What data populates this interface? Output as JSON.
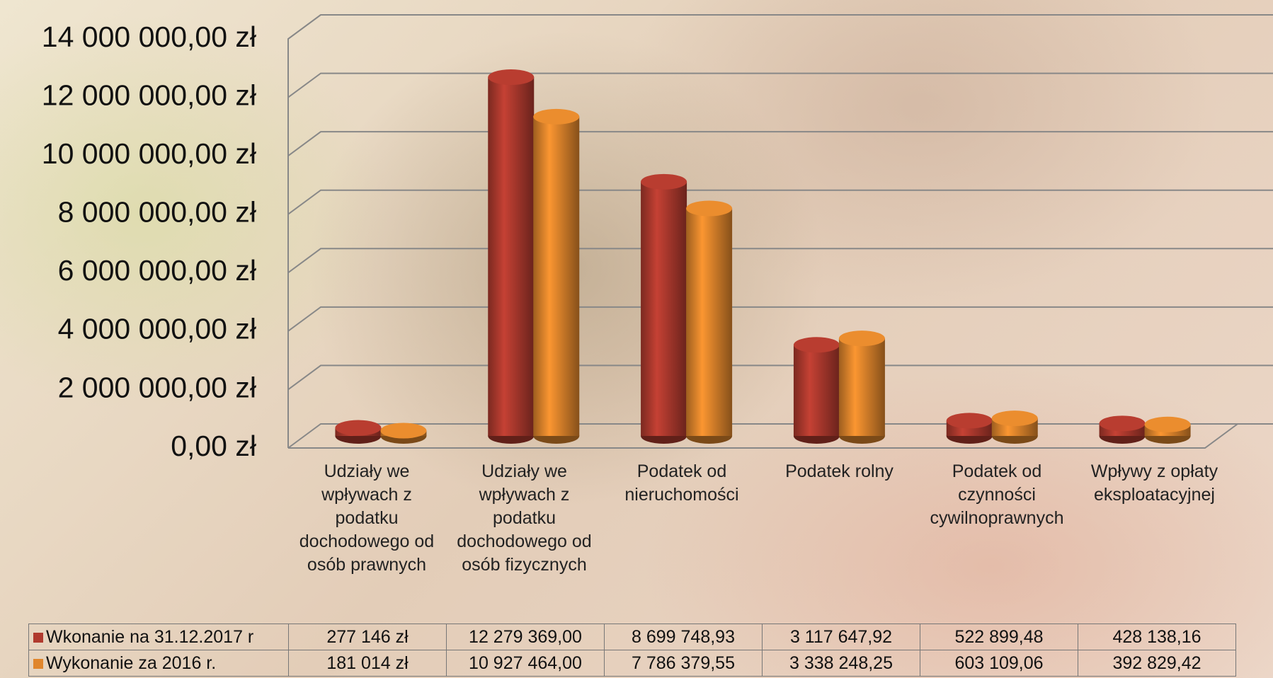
{
  "chart_data": {
    "type": "bar3d",
    "categories": [
      "Udziały we wpływach z podatku dochodowego od osób prawnych",
      "Udziały we wpływach z podatku dochodowego od osób fizycznych",
      "Podatek od nieruchomości",
      "Podatek rolny",
      "Podatek od czynności cywilnoprawnych",
      "Wpływy z opłaty eksploatacyjnej"
    ],
    "series": [
      {
        "name": "Wkonanie na 31.12.2017 r",
        "color": "#b03a2e",
        "values": [
          277146,
          12279369.0,
          8699748.93,
          3117647.92,
          522899.48,
          428138.16
        ],
        "value_labels": [
          "277 146 zł",
          "12 279 369,00",
          "8 699 748,93",
          "3 117 647,92",
          "522 899,48",
          "428 138,16"
        ]
      },
      {
        "name": "Wykonanie za 2016 r.",
        "color": "#e0862c",
        "values": [
          181014,
          10927464.0,
          7786379.55,
          3338248.25,
          603109.06,
          392829.42
        ],
        "value_labels": [
          "181 014 zł",
          "10 927 464,00",
          "7 786 379,55",
          "3 338 248,25",
          "603 109,06",
          "392 829,42"
        ]
      }
    ],
    "ylim": [
      0,
      14000000
    ],
    "yticks": [
      {
        "value": 0,
        "label": "0,00 zł"
      },
      {
        "value": 2000000,
        "label": "2 000 000,00 zł"
      },
      {
        "value": 4000000,
        "label": "4 000 000,00 zł"
      },
      {
        "value": 6000000,
        "label": "6 000 000,00 zł"
      },
      {
        "value": 8000000,
        "label": "8 000 000,00 zł"
      },
      {
        "value": 10000000,
        "label": "10 000 000,00 zł"
      },
      {
        "value": 12000000,
        "label": "12 000 000,00 zł"
      },
      {
        "value": 14000000,
        "label": "14 000 000,00 zł"
      }
    ],
    "grid": true
  }
}
